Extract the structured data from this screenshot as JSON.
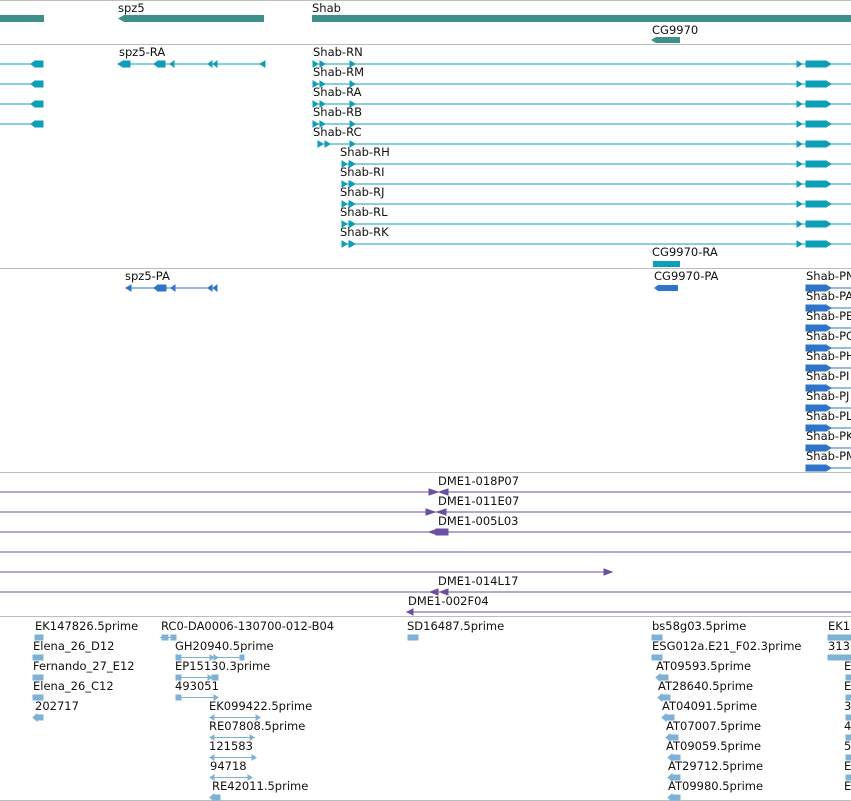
{
  "colors": {
    "gene": "#3f8f8b",
    "transcript": "#0e9fb8",
    "protein": "#2f74c8",
    "clone": "#6b4fa3",
    "est": "#7db1d6",
    "separator": "#bdbdbd"
  },
  "genes": [
    {
      "label": "spz5",
      "strand": "-"
    },
    {
      "label": "Shab",
      "strand": "+"
    },
    {
      "label": "CG9970",
      "strand": "-"
    }
  ],
  "transcripts": [
    {
      "label": "spz5-RA",
      "strand": "-"
    },
    {
      "label": "Shab-RN",
      "strand": "+"
    },
    {
      "label": "Shab-RM",
      "strand": "+"
    },
    {
      "label": "Shab-RA",
      "strand": "+"
    },
    {
      "label": "Shab-RB",
      "strand": "+"
    },
    {
      "label": "Shab-RC",
      "strand": "+"
    },
    {
      "label": "Shab-RH",
      "strand": "+"
    },
    {
      "label": "Shab-RI",
      "strand": "+"
    },
    {
      "label": "Shab-RJ",
      "strand": "+"
    },
    {
      "label": "Shab-RL",
      "strand": "+"
    },
    {
      "label": "Shab-RK",
      "strand": "+"
    },
    {
      "label": "CG9970-RA",
      "strand": "-"
    }
  ],
  "proteins": [
    {
      "label": "spz5-PA"
    },
    {
      "label": "CG9970-PA"
    },
    {
      "label": "Shab-PN"
    },
    {
      "label": "Shab-PA"
    },
    {
      "label": "Shab-PB"
    },
    {
      "label": "Shab-PC"
    },
    {
      "label": "Shab-PH"
    },
    {
      "label": "Shab-PI"
    },
    {
      "label": "Shab-PJ"
    },
    {
      "label": "Shab-PL"
    },
    {
      "label": "Shab-PK"
    },
    {
      "label": "Shab-PM"
    }
  ],
  "clones": [
    {
      "label": "DME1-018P07"
    },
    {
      "label": "DME1-011E07"
    },
    {
      "label": "DME1-005L03"
    },
    {
      "label": ""
    },
    {
      "label": ""
    },
    {
      "label": "DME1-014L17"
    },
    {
      "label": "DME1-002F04"
    }
  ],
  "ests": [
    {
      "label": "EK147826.5prime"
    },
    {
      "label": "Elena_26_D12"
    },
    {
      "label": "Fernando_27_E12"
    },
    {
      "label": "Elena_26_C12"
    },
    {
      "label": "202717"
    },
    {
      "label": "RC0-DA0006-130700-012-B04"
    },
    {
      "label": "GH20940.5prime"
    },
    {
      "label": "EP15130.3prime"
    },
    {
      "label": "493051"
    },
    {
      "label": "EK099422.5prime"
    },
    {
      "label": "RE07808.5prime"
    },
    {
      "label": "121583"
    },
    {
      "label": "94718"
    },
    {
      "label": "RE42011.5prime"
    },
    {
      "label": "SD16487.5prime"
    },
    {
      "label": "bs58g03.5prime"
    },
    {
      "label": "ESG012a.E21_F02.3prime"
    },
    {
      "label": "AT09593.5prime"
    },
    {
      "label": "AT28640.5prime"
    },
    {
      "label": "AT04091.5prime"
    },
    {
      "label": "AT07007.5prime"
    },
    {
      "label": "AT09059.5prime"
    },
    {
      "label": "AT29712.5prime"
    },
    {
      "label": "AT09980.5prime"
    },
    {
      "label": "EK1"
    },
    {
      "label": "313"
    },
    {
      "label": "E"
    },
    {
      "label": "E"
    },
    {
      "label": "3"
    },
    {
      "label": "4"
    },
    {
      "label": "5"
    },
    {
      "label": "E"
    },
    {
      "label": "E"
    }
  ]
}
